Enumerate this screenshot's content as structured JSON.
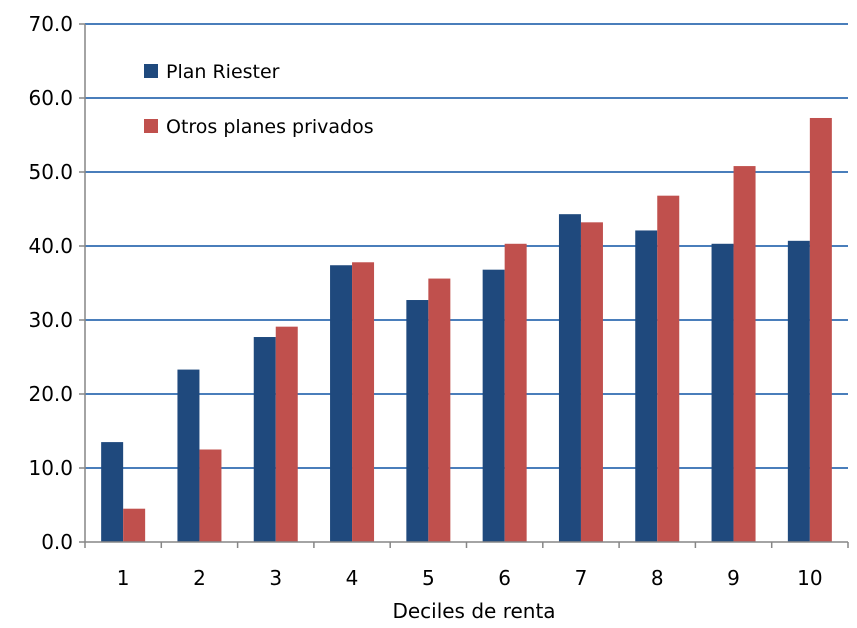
{
  "chart_data": {
    "type": "bar",
    "title": "",
    "xlabel": "Deciles de renta",
    "ylabel": "",
    "categories": [
      "1",
      "2",
      "3",
      "4",
      "5",
      "6",
      "7",
      "8",
      "9",
      "10"
    ],
    "y_ticks": [
      "0.0",
      "10.0",
      "20.0",
      "30.0",
      "40.0",
      "50.0",
      "60.0",
      "70.0"
    ],
    "ylim": [
      0,
      70
    ],
    "grid": true,
    "legend_position": "top-left",
    "series": [
      {
        "name": "Plan Riester",
        "color": "#1f497d",
        "values": [
          13.5,
          23.3,
          27.7,
          37.4,
          32.7,
          36.8,
          44.3,
          42.1,
          40.3,
          40.7
        ]
      },
      {
        "name": "Otros planes privados",
        "color": "#c0504d",
        "values": [
          4.5,
          12.5,
          29.1,
          37.8,
          35.6,
          40.3,
          43.2,
          46.8,
          50.8,
          57.3
        ]
      }
    ]
  }
}
